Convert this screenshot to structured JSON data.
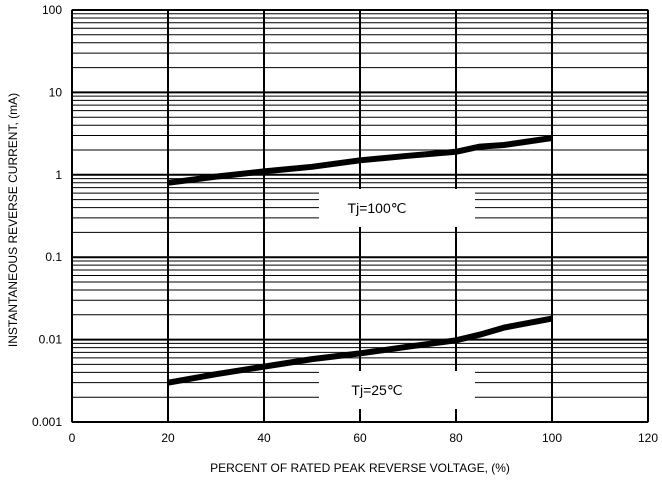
{
  "chart_data": {
    "type": "line",
    "title": "",
    "xlabel": "PERCENT OF RATED PEAK REVERSE VOLTAGE, (%)",
    "ylabel": "INSTANTANEOUS REVERSE CURRENT, (mA)",
    "xlim": [
      0,
      120
    ],
    "ylim": [
      0.001,
      100
    ],
    "yscale": "log",
    "grid": true,
    "x_ticks": [
      0,
      20,
      40,
      60,
      80,
      100,
      120
    ],
    "x_tick_labels": [
      "0",
      "20",
      "40",
      "60",
      "80",
      "100",
      "120"
    ],
    "y_ticks": [
      0.001,
      0.01,
      0.1,
      1,
      10,
      100
    ],
    "y_tick_labels": [
      "0.001",
      "0.01",
      "0.1",
      "1",
      "10",
      "100"
    ],
    "series": [
      {
        "name": "Tj=100℃",
        "x": [
          20,
          30,
          40,
          50,
          60,
          70,
          80,
          85,
          90,
          100
        ],
        "y": [
          0.8,
          0.95,
          1.1,
          1.25,
          1.5,
          1.7,
          1.9,
          2.2,
          2.3,
          2.8
        ]
      },
      {
        "name": "Tj=25℃",
        "x": [
          20,
          30,
          40,
          50,
          60,
          70,
          80,
          85,
          90,
          100
        ],
        "y": [
          0.003,
          0.0038,
          0.0047,
          0.0058,
          0.0068,
          0.0082,
          0.0098,
          0.0115,
          0.014,
          0.018
        ]
      }
    ],
    "annotations": [
      {
        "text": "Tj=100℃",
        "series": 0
      },
      {
        "text": "Tj=25℃",
        "series": 1
      }
    ]
  }
}
